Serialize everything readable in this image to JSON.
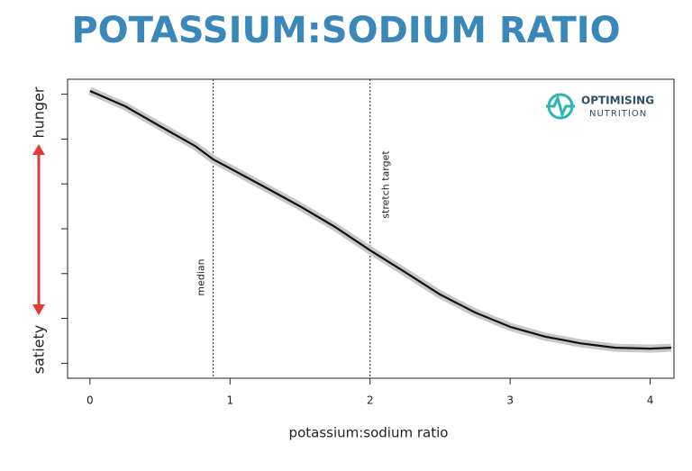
{
  "chart_data": {
    "type": "line",
    "title": "POTASSIUM:SODIUM RATIO",
    "x_label": "potassium:sodium ratio",
    "y_label_top": "hunger",
    "y_label_bottom": "satiety",
    "logo": {
      "line1": "OPTIMISING",
      "line2": "NUTRITION"
    },
    "x": [
      0,
      0.25,
      0.5,
      0.75,
      0.88,
      1.0,
      1.25,
      1.5,
      1.75,
      2.0,
      2.25,
      2.5,
      2.75,
      3.0,
      3.25,
      3.5,
      3.75,
      4.0,
      4.15
    ],
    "series": [
      {
        "color": "#111111",
        "values": [
          9.61,
          9.1,
          8.43,
          7.77,
          7.32,
          7.02,
          6.39,
          5.75,
          5.06,
          4.28,
          3.55,
          2.8,
          2.2,
          1.72,
          1.39,
          1.17,
          1.02,
          0.99,
          1.02
        ]
      }
    ],
    "band_color": "#c8c8c8",
    "xlim": [
      -0.16,
      4.17
    ],
    "xticks": [
      0,
      1,
      2,
      3,
      4
    ],
    "ylim": [
      0,
      10
    ],
    "yticks": [
      0.5,
      2,
      3.5,
      5,
      6.5,
      8,
      9.5
    ],
    "vlines": [
      {
        "x": 0.88,
        "label": "median"
      },
      {
        "x": 2,
        "label": "stretch target"
      }
    ]
  }
}
